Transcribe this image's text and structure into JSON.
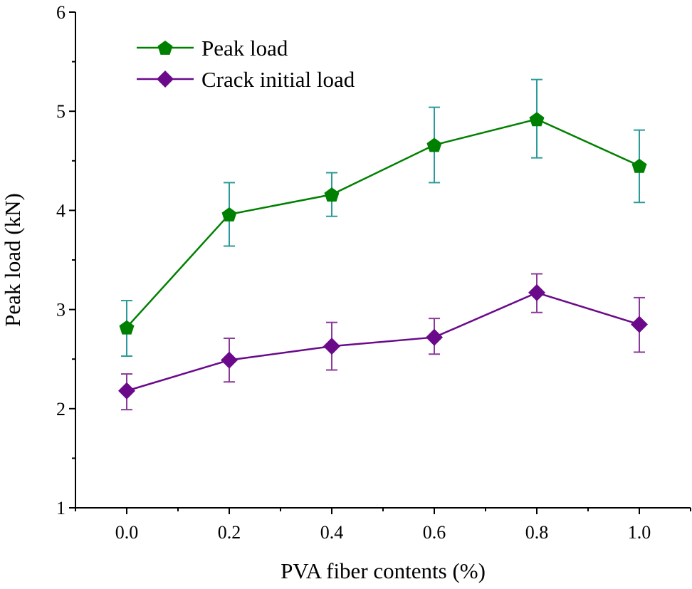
{
  "chart_data": {
    "type": "line",
    "title": "",
    "xlabel": "PVA fiber contents (%)",
    "ylabel": "Peak load (kN)",
    "xlim": [
      -0.1,
      1.1
    ],
    "ylim": [
      1,
      6
    ],
    "xticks": [
      "0.0",
      "0.2",
      "0.4",
      "0.6",
      "0.8",
      "1.0"
    ],
    "yticks": [
      "1",
      "2",
      "3",
      "4",
      "5",
      "6"
    ],
    "grid": false,
    "legend_position": "top-left",
    "x": [
      0.0,
      0.2,
      0.4,
      0.6,
      0.8,
      1.0
    ],
    "series": [
      {
        "name": "Peak load",
        "marker": "pentagon",
        "color": "#008000",
        "error_color": "#2a9a9a",
        "values": [
          2.82,
          3.96,
          4.16,
          4.66,
          4.92,
          4.45
        ],
        "error_upper": [
          3.09,
          4.28,
          4.38,
          5.04,
          5.32,
          4.81
        ],
        "error_lower": [
          2.53,
          3.64,
          3.94,
          4.28,
          4.53,
          4.08
        ]
      },
      {
        "name": "Crack initial load",
        "marker": "diamond",
        "color": "#6a0a8a",
        "error_color": "#8a3a9a",
        "values": [
          2.18,
          2.49,
          2.63,
          2.72,
          3.17,
          2.85
        ],
        "error_upper": [
          2.35,
          2.71,
          2.87,
          2.91,
          3.36,
          3.12
        ],
        "error_lower": [
          1.99,
          2.27,
          2.39,
          2.55,
          2.97,
          2.57
        ]
      }
    ]
  }
}
